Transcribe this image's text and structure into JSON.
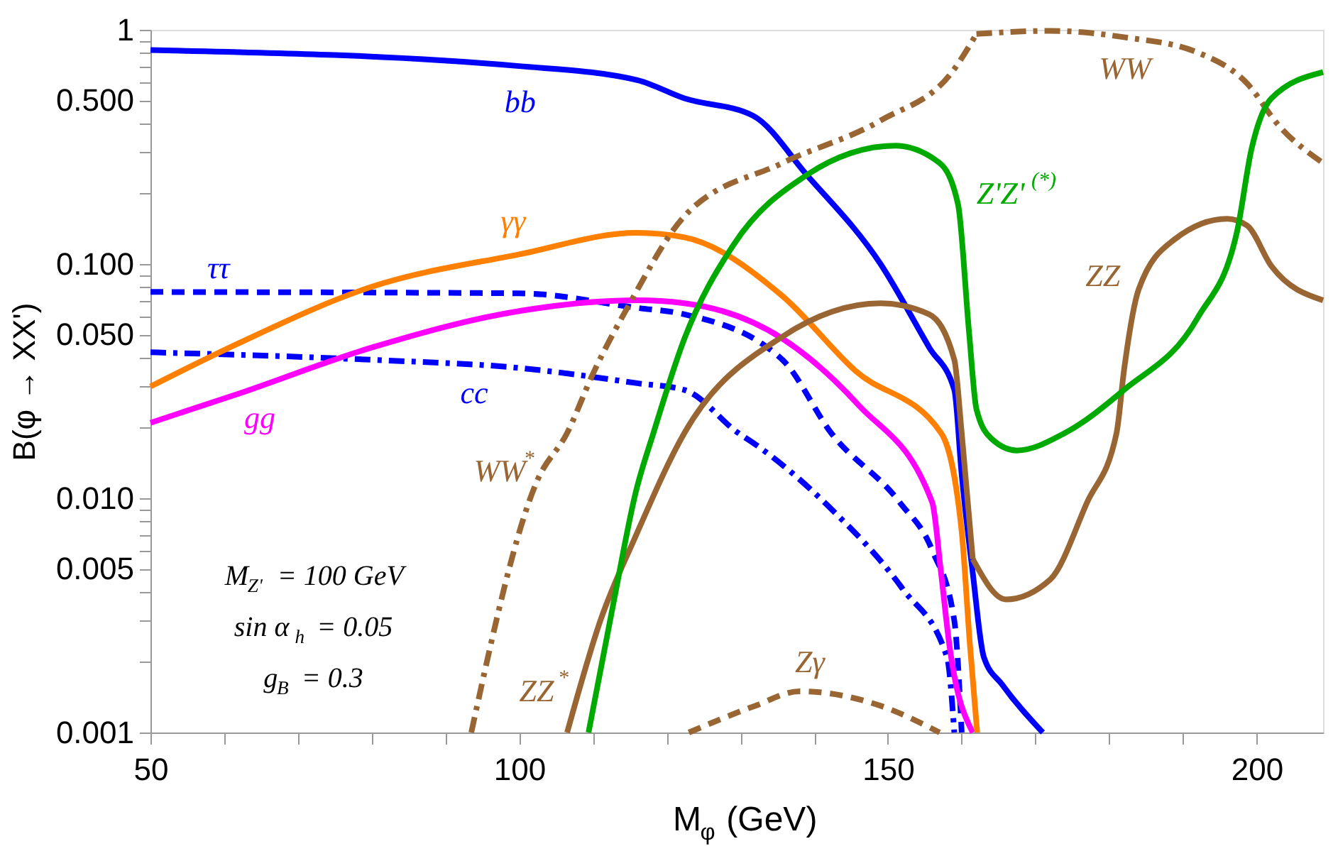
{
  "chart_data": {
    "type": "line",
    "xlabel": "M$_{φ}$ (GeV)",
    "ylabel": "B(φ → XX')",
    "log": "y",
    "grid": false,
    "xlim": [
      50,
      209
    ],
    "ylim": [
      0.001,
      1
    ],
    "xticks": [
      50,
      {
        "value": 60,
        "label": null
      },
      {
        "value": 70,
        "label": null
      },
      {
        "value": 80,
        "label": null
      },
      {
        "value": 90,
        "label": null
      },
      100,
      {
        "value": 110,
        "label": null
      },
      {
        "value": 120,
        "label": null
      },
      {
        "value": 130,
        "label": null
      },
      {
        "value": 140,
        "label": null
      },
      150,
      {
        "value": 160,
        "label": null
      },
      {
        "value": 170,
        "label": null
      },
      {
        "value": 180,
        "label": null
      },
      {
        "value": 190,
        "label": null
      },
      200
    ],
    "yticks": [
      {
        "value": 0.001,
        "label": "0.001"
      },
      {
        "value": 0.002,
        "label": null
      },
      {
        "value": 0.003,
        "label": null
      },
      {
        "value": 0.004,
        "label": null
      },
      {
        "value": 0.005,
        "label": "0.005"
      },
      {
        "value": 0.006,
        "label": null
      },
      {
        "value": 0.007,
        "label": null
      },
      {
        "value": 0.008,
        "label": null
      },
      {
        "value": 0.009,
        "label": null
      },
      {
        "value": 0.01,
        "label": "0.010"
      },
      {
        "value": 0.02,
        "label": null
      },
      {
        "value": 0.03,
        "label": null
      },
      {
        "value": 0.04,
        "label": null
      },
      {
        "value": 0.05,
        "label": "0.050"
      },
      {
        "value": 0.06,
        "label": null
      },
      {
        "value": 0.07,
        "label": null
      },
      {
        "value": 0.08,
        "label": null
      },
      {
        "value": 0.09,
        "label": null
      },
      {
        "value": 0.1,
        "label": "0.100"
      },
      {
        "value": 0.2,
        "label": null
      },
      {
        "value": 0.3,
        "label": null
      },
      {
        "value": 0.4,
        "label": null
      },
      {
        "value": 0.5,
        "label": "0.500"
      },
      {
        "value": 0.6,
        "label": null
      },
      {
        "value": 0.7,
        "label": null
      },
      {
        "value": 0.8,
        "label": null
      },
      {
        "value": 0.9,
        "label": null
      },
      1
    ],
    "annotations": [
      "M$_{Z'}$ = 100 GeV",
      "sin α$_{h}$ = 0.05",
      "g$_{B}$ = 0.3"
    ],
    "series": [
      {
        "name": "bb",
        "color": "#0000ff",
        "line_style": "solid",
        "x": [
          50,
          100,
          116,
          122.4,
          131.7,
          139,
          149,
          155.6,
          159,
          160,
          161.5,
          163,
          165.5,
          171
        ],
        "values": [
          0.82,
          0.7,
          0.61,
          0.51,
          0.43,
          0.24,
          0.1,
          0.044,
          0.029,
          0.0126,
          0.0048,
          0.0021,
          0.0016,
          0.001
        ]
      },
      {
        "name": "ττ",
        "color": "#0000ff",
        "line_style": "dashed",
        "x": [
          50,
          100,
          116,
          122.4,
          135.7,
          142.3,
          151.6,
          156,
          159,
          160
        ],
        "values": [
          0.076,
          0.075,
          0.065,
          0.061,
          0.039,
          0.019,
          0.0096,
          0.006,
          0.003,
          0.001
        ]
      },
      {
        "name": "cc",
        "color": "#0000ff",
        "line_style": "dashdot",
        "x": [
          50,
          80,
          100,
          116,
          122.4,
          129.7,
          132,
          142,
          152,
          158,
          159
        ],
        "values": [
          0.042,
          0.039,
          0.036,
          0.031,
          0.029,
          0.019,
          0.017,
          0.0092,
          0.0041,
          0.0021,
          0.001
        ]
      },
      {
        "name": "gg",
        "color": "#ff00ff",
        "line_style": "solid",
        "x": [
          50,
          62,
          80,
          100,
          116,
          122.4,
          135.7,
          146,
          156,
          157.2,
          158.3,
          161.5
        ],
        "values": [
          0.021,
          0.028,
          0.044,
          0.063,
          0.07,
          0.068,
          0.048,
          0.025,
          0.0096,
          0.0048,
          0.0024,
          0.001
        ]
      },
      {
        "name": "γγ",
        "color": "#ff8000",
        "line_style": "solid",
        "x": [
          50,
          62,
          80,
          100,
          116,
          122.4,
          135.7,
          145.6,
          157.2,
          160,
          161.1,
          162.1
        ],
        "values": [
          0.03,
          0.046,
          0.08,
          0.11,
          0.136,
          0.13,
          0.073,
          0.035,
          0.019,
          0.0072,
          0.0024,
          0.001
        ]
      },
      {
        "name": "WW$^{*}$",
        "color": "#996633",
        "line_style": "dashdot",
        "x": [
          93.5,
          102.5,
          106.5,
          110,
          115,
          122.4,
          135.7,
          149,
          159,
          162
        ],
        "values": [
          0.001,
          0.012,
          0.019,
          0.034,
          0.068,
          0.16,
          0.27,
          0.41,
          0.68,
          0.96
        ]
      },
      {
        "name": "WW",
        "color": "#996633",
        "line_style": "dashdot",
        "x": [
          162,
          172,
          182,
          192,
          198.7,
          203,
          209
        ],
        "values": [
          0.96,
          0.99,
          0.93,
          0.8,
          0.59,
          0.39,
          0.27
        ]
      },
      {
        "name": "ZZ$^{*}$",
        "color": "#996633",
        "line_style": "solid",
        "x": [
          106.5,
          111,
          115.8,
          122.4,
          135.7,
          149,
          155.6,
          159,
          160,
          161.5
        ],
        "values": [
          0.001,
          0.003,
          0.0069,
          0.019,
          0.049,
          0.068,
          0.061,
          0.039,
          0.019,
          0.0055
        ]
      },
      {
        "name": "ZZ",
        "color": "#996633",
        "line_style": "solid",
        "x": [
          161.5,
          166,
          172,
          177,
          181,
          182,
          184,
          188.8,
          196,
          198.7,
          202,
          209
        ],
        "values": [
          0.0055,
          0.0037,
          0.0045,
          0.0096,
          0.019,
          0.035,
          0.078,
          0.127,
          0.156,
          0.146,
          0.098,
          0.07
        ]
      },
      {
        "name": "Z'Z'$^{(*)}$",
        "color": "#00aa00",
        "line_style": "solid",
        "x": [
          109.4,
          112.8,
          115.8,
          118.2,
          122.4,
          129,
          139,
          151,
          157,
          159.5,
          161,
          162,
          164,
          167.5,
          174,
          182,
          192,
          197.3,
          199.3,
          202,
          209
        ],
        "values": [
          0.001,
          0.0036,
          0.0106,
          0.019,
          0.048,
          0.12,
          0.24,
          0.32,
          0.27,
          0.18,
          0.051,
          0.024,
          0.018,
          0.016,
          0.019,
          0.029,
          0.059,
          0.136,
          0.31,
          0.51,
          0.66
        ]
      },
      {
        "name": "Zγ",
        "color": "#996633",
        "line_style": "dashed",
        "x": [
          123,
          132,
          138,
          149,
          157
        ],
        "values": [
          0.001,
          0.0013,
          0.0015,
          0.0013,
          0.001
        ]
      }
    ]
  }
}
